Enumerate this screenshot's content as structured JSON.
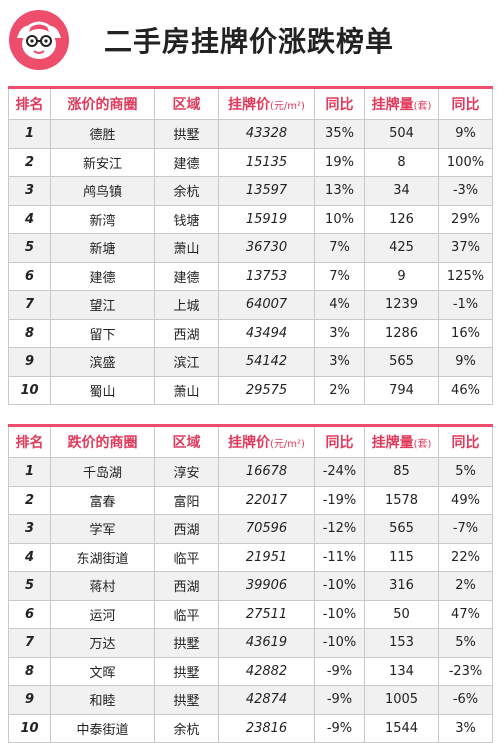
{
  "title": "二手房挂牌价涨跌榜单",
  "colors": {
    "accent": "#e23a5c",
    "row_alt": "#f1f1f1"
  },
  "rise_table": {
    "headers": {
      "rank": "排名",
      "name": "涨价的商圈",
      "district": "区域",
      "price": "挂牌价",
      "price_unit": "(元/m²)",
      "yoy_price": "同比",
      "volume": "挂牌量",
      "volume_unit": "(套)",
      "yoy_volume": "同比"
    },
    "rows": [
      {
        "rank": "1",
        "name": "德胜",
        "district": "拱墅",
        "price": "43328",
        "yoy_price": "35%",
        "volume": "504",
        "yoy_volume": "9%"
      },
      {
        "rank": "2",
        "name": "新安江",
        "district": "建德",
        "price": "15135",
        "yoy_price": "19%",
        "volume": "8",
        "yoy_volume": "100%"
      },
      {
        "rank": "3",
        "name": "鸬鸟镇",
        "district": "余杭",
        "price": "13597",
        "yoy_price": "13%",
        "volume": "34",
        "yoy_volume": "-3%"
      },
      {
        "rank": "4",
        "name": "新湾",
        "district": "钱塘",
        "price": "15919",
        "yoy_price": "10%",
        "volume": "126",
        "yoy_volume": "29%"
      },
      {
        "rank": "5",
        "name": "新塘",
        "district": "萧山",
        "price": "36730",
        "yoy_price": "7%",
        "volume": "425",
        "yoy_volume": "37%"
      },
      {
        "rank": "6",
        "name": "建德",
        "district": "建德",
        "price": "13753",
        "yoy_price": "7%",
        "volume": "9",
        "yoy_volume": "125%"
      },
      {
        "rank": "7",
        "name": "望江",
        "district": "上城",
        "price": "64007",
        "yoy_price": "4%",
        "volume": "1239",
        "yoy_volume": "-1%"
      },
      {
        "rank": "8",
        "name": "留下",
        "district": "西湖",
        "price": "43494",
        "yoy_price": "3%",
        "volume": "1286",
        "yoy_volume": "16%"
      },
      {
        "rank": "9",
        "name": "滨盛",
        "district": "滨江",
        "price": "54142",
        "yoy_price": "3%",
        "volume": "565",
        "yoy_volume": "9%"
      },
      {
        "rank": "10",
        "name": "蜀山",
        "district": "萧山",
        "price": "29575",
        "yoy_price": "2%",
        "volume": "794",
        "yoy_volume": "46%"
      }
    ]
  },
  "fall_table": {
    "headers": {
      "rank": "排名",
      "name": "跌价的商圈",
      "district": "区域",
      "price": "挂牌价",
      "price_unit": "(元/m²)",
      "yoy_price": "同比",
      "volume": "挂牌量",
      "volume_unit": "(套)",
      "yoy_volume": "同比"
    },
    "rows": [
      {
        "rank": "1",
        "name": "千岛湖",
        "district": "淳安",
        "price": "16678",
        "yoy_price": "-24%",
        "volume": "85",
        "yoy_volume": "5%"
      },
      {
        "rank": "2",
        "name": "富春",
        "district": "富阳",
        "price": "22017",
        "yoy_price": "-19%",
        "volume": "1578",
        "yoy_volume": "49%"
      },
      {
        "rank": "3",
        "name": "学军",
        "district": "西湖",
        "price": "70596",
        "yoy_price": "-12%",
        "volume": "565",
        "yoy_volume": "-7%"
      },
      {
        "rank": "4",
        "name": "东湖街道",
        "district": "临平",
        "price": "21951",
        "yoy_price": "-11%",
        "volume": "115",
        "yoy_volume": "22%"
      },
      {
        "rank": "5",
        "name": "蒋村",
        "district": "西湖",
        "price": "39906",
        "yoy_price": "-10%",
        "volume": "316",
        "yoy_volume": "2%"
      },
      {
        "rank": "6",
        "name": "运河",
        "district": "临平",
        "price": "27511",
        "yoy_price": "-10%",
        "volume": "50",
        "yoy_volume": "47%"
      },
      {
        "rank": "7",
        "name": "万达",
        "district": "拱墅",
        "price": "43619",
        "yoy_price": "-10%",
        "volume": "153",
        "yoy_volume": "5%"
      },
      {
        "rank": "8",
        "name": "文晖",
        "district": "拱墅",
        "price": "42882",
        "yoy_price": "-9%",
        "volume": "134",
        "yoy_volume": "-23%"
      },
      {
        "rank": "9",
        "name": "和睦",
        "district": "拱墅",
        "price": "42874",
        "yoy_price": "-9%",
        "volume": "1005",
        "yoy_volume": "-6%"
      },
      {
        "rank": "10",
        "name": "中泰街道",
        "district": "余杭",
        "price": "23816",
        "yoy_price": "-9%",
        "volume": "1544",
        "yoy_volume": "3%"
      }
    ]
  }
}
